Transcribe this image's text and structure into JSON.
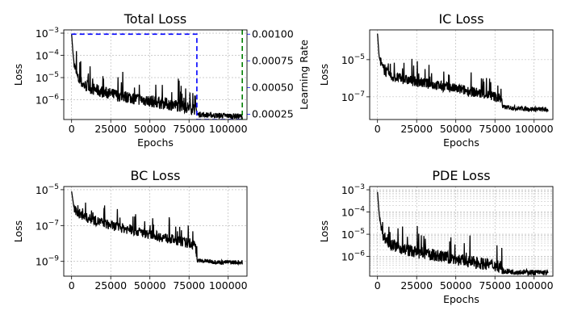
{
  "chart_data": [
    {
      "type": "line",
      "title": "Total Loss",
      "xlabel": "Epochs",
      "ylabel": "Loss",
      "y_scale": "log",
      "xlim": [
        -5000,
        112000
      ],
      "ylim": [
        1.3e-07,
        0.0014
      ],
      "x_ticks": [
        0,
        25000,
        50000,
        75000,
        100000
      ],
      "x_tick_labels": [
        "0",
        "25000",
        "50000",
        "75000",
        "100000"
      ],
      "y_ticks": [
        1e-06,
        1e-05,
        0.0001,
        0.001
      ],
      "y_tick_labels": [
        "10^-6",
        "10^-5",
        "10^-4",
        "10^-3"
      ],
      "grid": true,
      "series": [
        {
          "color": "#000000",
          "style": "solid",
          "noisy": true,
          "x": [
            0,
            1000,
            2000,
            4000,
            8000,
            15000,
            25000,
            40000,
            55000,
            70000,
            79000,
            80000,
            90000,
            100000,
            109000
          ],
          "y": [
            0.0009,
            0.0001,
            2.5e-05,
            7e-06,
            3.5e-06,
            2.2e-06,
            1.4e-06,
            9e-07,
            6e-07,
            4e-07,
            3e-07,
            2e-07,
            1.8e-07,
            1.7e-07,
            1.6e-07
          ]
        }
      ],
      "secondary_axis": {
        "ylabel": "Learning Rate",
        "color": "#0000ff",
        "ylim": [
          0.0002,
          0.00104
        ],
        "ticks": [
          0.00025,
          0.0005,
          0.00075,
          0.001
        ],
        "tick_labels": [
          "0.00025",
          "0.00050",
          "0.00075",
          "0.00100"
        ],
        "series": [
          {
            "color": "#0000ff",
            "style": "dashed",
            "x": [
              0,
              80000,
              80000,
              109000
            ],
            "y": [
              0.001,
              0.001,
              0.0002,
              0.0002
            ]
          }
        ]
      },
      "vertical_marker": {
        "x": 109000,
        "color": "#008000",
        "style": "dashed"
      }
    },
    {
      "type": "line",
      "title": "IC Loss",
      "xlabel": "Epochs",
      "ylabel": "Loss",
      "y_scale": "log",
      "xlim": [
        -5000,
        112000
      ],
      "ylim": [
        6e-09,
        0.0004
      ],
      "x_ticks": [
        0,
        25000,
        50000,
        75000,
        100000
      ],
      "x_tick_labels": [
        "0",
        "25000",
        "50000",
        "75000",
        "100000"
      ],
      "y_ticks": [
        1e-07,
        1e-05
      ],
      "y_tick_labels": [
        "10^-7",
        "10^-5"
      ],
      "grid": true,
      "series": [
        {
          "color": "#000000",
          "style": "solid",
          "noisy": true,
          "x": [
            0,
            1000,
            3000,
            8000,
            20000,
            40000,
            60000,
            75000,
            79000,
            80000,
            95000,
            109000
          ],
          "y": [
            0.00025,
            1.5e-05,
            3e-06,
            1e-06,
            6e-07,
            3e-07,
            1.5e-07,
            8e-08,
            6e-08,
            2.5e-08,
            2e-08,
            1.8e-08
          ]
        }
      ]
    },
    {
      "type": "line",
      "title": "BC Loss",
      "xlabel": "",
      "ylabel": "Loss",
      "y_scale": "log",
      "xlim": [
        -5000,
        112000
      ],
      "ylim": [
        1.5e-10,
        1.5e-05
      ],
      "x_ticks": [
        0,
        25000,
        50000,
        75000,
        100000
      ],
      "x_tick_labels": [
        "0",
        "25000",
        "50000",
        "75000",
        "100000"
      ],
      "y_ticks": [
        1e-09,
        1e-07,
        1e-05
      ],
      "y_tick_labels": [
        "10^-9",
        "10^-7",
        "10^-5"
      ],
      "grid": true,
      "series": [
        {
          "color": "#000000",
          "style": "solid",
          "noisy": true,
          "x": [
            0,
            2000,
            10000,
            25000,
            40000,
            55000,
            70000,
            79000,
            80000,
            95000,
            109000
          ],
          "y": [
            8e-06,
            5e-07,
            2e-07,
            8e-08,
            4e-08,
            2e-08,
            1e-08,
            6e-09,
            1e-09,
            8e-10,
            8e-10
          ]
        }
      ]
    },
    {
      "type": "line",
      "title": "PDE Loss",
      "xlabel": "Epochs",
      "ylabel": "Loss",
      "y_scale": "log",
      "xlim": [
        -5000,
        112000
      ],
      "ylim": [
        1.3e-07,
        0.0014
      ],
      "x_ticks": [
        0,
        25000,
        50000,
        75000,
        100000
      ],
      "x_tick_labels": [
        "0",
        "25000",
        "50000",
        "75000",
        "100000"
      ],
      "y_ticks": [
        1e-06,
        1e-05,
        0.0001,
        0.001
      ],
      "y_tick_labels": [
        "10^-6",
        "10^-5",
        "10^-4",
        "10^-3"
      ],
      "grid": true,
      "minor_grid": true,
      "series": [
        {
          "color": "#000000",
          "style": "solid",
          "noisy": true,
          "x": [
            0,
            1000,
            2000,
            4000,
            8000,
            15000,
            25000,
            40000,
            55000,
            70000,
            79000,
            80000,
            90000,
            100000,
            109000
          ],
          "y": [
            0.0008,
            9e-05,
            2e-05,
            6e-06,
            3e-06,
            1.8e-06,
            1.2e-06,
            8e-07,
            5e-07,
            3.5e-07,
            2.8e-07,
            1.9e-07,
            1.8e-07,
            1.7e-07,
            1.65e-07
          ]
        }
      ]
    }
  ]
}
